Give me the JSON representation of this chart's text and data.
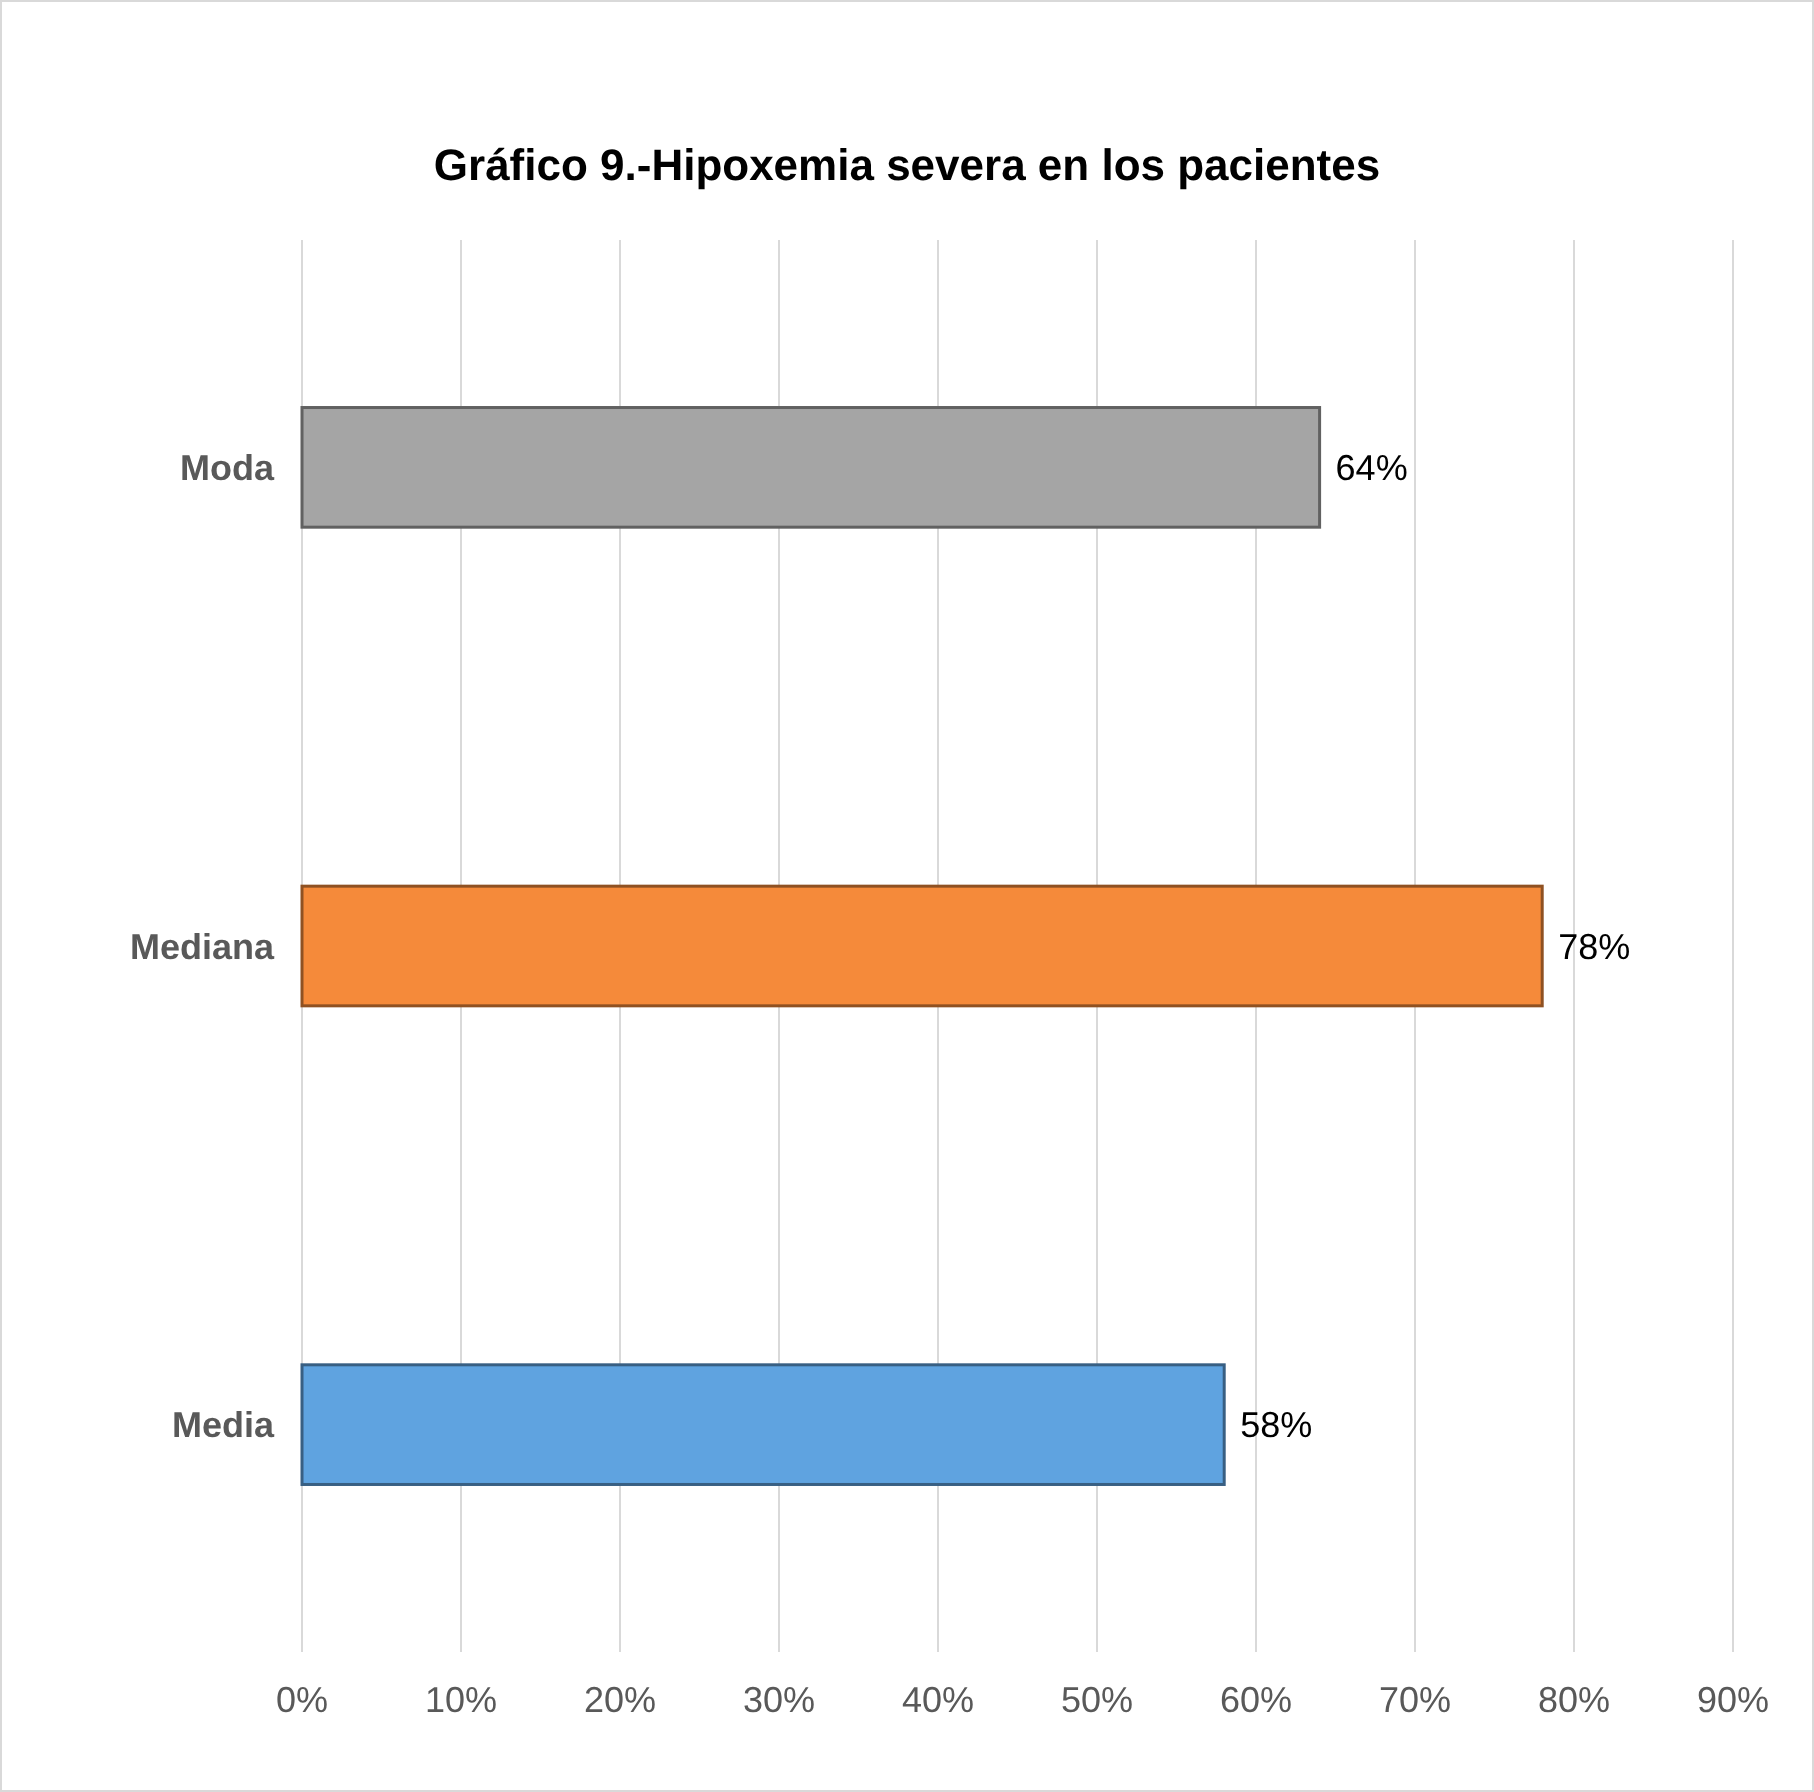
{
  "chart_data": {
    "type": "bar",
    "orientation": "horizontal",
    "title": "Gráfico 9.-Hipoxemia severa en los pacientes",
    "categories": [
      "Moda",
      "Mediana",
      "Media"
    ],
    "values": [
      64,
      78,
      58
    ],
    "colors": [
      "#a5a5a5",
      "#f58a3a",
      "#5fa3e0"
    ],
    "value_labels": [
      "64%",
      "78%",
      "58%"
    ],
    "xlim": [
      0,
      90
    ],
    "xticks": [
      {
        "value": 0,
        "label": "0%"
      },
      {
        "value": 10,
        "label": "10%"
      },
      {
        "value": 20,
        "label": "20%"
      },
      {
        "value": 30,
        "label": "30%"
      },
      {
        "value": 40,
        "label": "40%"
      },
      {
        "value": 50,
        "label": "50%"
      },
      {
        "value": 60,
        "label": "60%"
      },
      {
        "value": 70,
        "label": "70%"
      },
      {
        "value": 80,
        "label": "80%"
      },
      {
        "value": 90,
        "label": "90%"
      }
    ],
    "grid": "x"
  }
}
